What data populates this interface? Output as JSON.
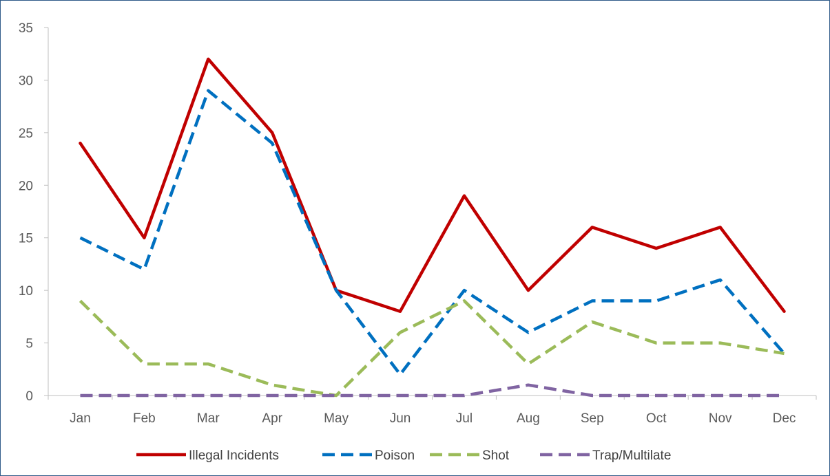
{
  "chart_data": {
    "type": "line",
    "categories": [
      "Jan",
      "Feb",
      "Mar",
      "Apr",
      "May",
      "Jun",
      "Jul",
      "Aug",
      "Sep",
      "Oct",
      "Nov",
      "Dec"
    ],
    "ylim": [
      0,
      35
    ],
    "yticks": [
      0,
      5,
      10,
      15,
      20,
      25,
      30,
      35
    ],
    "grid": false,
    "legend": "bottom",
    "series": [
      {
        "name": "Illegal Incidents",
        "values": [
          24,
          15,
          32,
          25,
          10,
          8,
          19,
          10,
          16,
          14,
          16,
          8
        ],
        "color": "#C00000",
        "dash": "solid"
      },
      {
        "name": "Poison",
        "values": [
          15,
          12,
          29,
          24,
          10,
          2,
          10,
          6,
          9,
          9,
          11,
          4
        ],
        "color": "#0070C0",
        "dash": "dashed"
      },
      {
        "name": "Shot",
        "values": [
          9,
          3,
          3,
          1,
          0,
          6,
          9,
          3,
          7,
          5,
          5,
          4
        ],
        "color": "#9BBB59",
        "dash": "dashed"
      },
      {
        "name": "Trap/Multilate",
        "values": [
          0,
          0,
          0,
          0,
          0,
          0,
          0,
          1,
          0,
          0,
          0,
          0
        ],
        "color": "#8064A2",
        "dash": "dashed"
      }
    ]
  }
}
